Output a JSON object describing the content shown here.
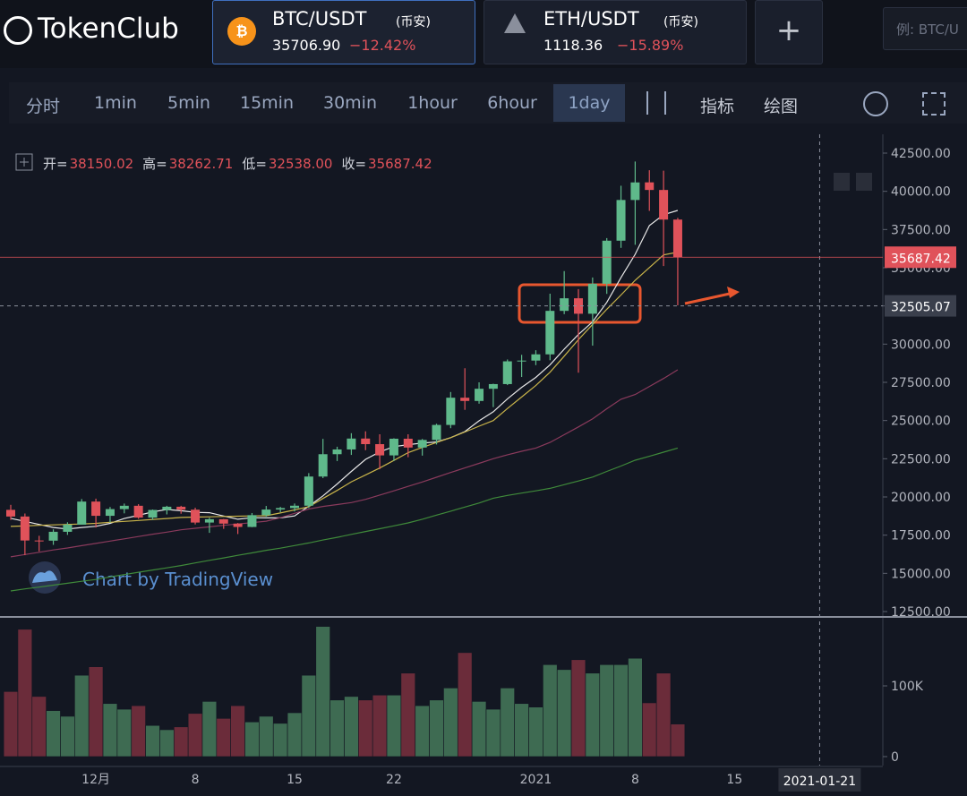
{
  "header": {
    "logo": "TokenClub",
    "tabs": [
      {
        "pair": "BTC/USDT",
        "exchange": "(币安)",
        "price": "35706.90",
        "change": "−12.42%"
      },
      {
        "pair": "ETH/USDT",
        "exchange": "(币安)",
        "price": "1118.36",
        "change": "−15.89%"
      }
    ],
    "search_placeholder": "例: BTC/U"
  },
  "toolbar": {
    "intervals": [
      "分时",
      "1min",
      "5min",
      "15min",
      "30min",
      "1hour",
      "6hour",
      "1day"
    ],
    "tools": [
      "指标",
      "绘图"
    ]
  },
  "watermark": "Chart by TradingView",
  "chart_data": {
    "type": "candlestick",
    "ohlc_legend": [
      {
        "label": "开=",
        "value": "38150.02"
      },
      {
        "label": "高=",
        "value": "38262.71"
      },
      {
        "label": "低=",
        "value": "32538.00"
      },
      {
        "label": "收=",
        "value": "35687.42"
      }
    ],
    "categories": [
      null,
      null,
      null,
      null,
      null,
      null,
      "12月",
      null,
      null,
      null,
      null,
      null,
      null,
      "8",
      null,
      null,
      null,
      null,
      null,
      null,
      "15",
      null,
      null,
      null,
      null,
      null,
      null,
      "22",
      null,
      null,
      null,
      null,
      null,
      null,
      null,
      null,
      null,
      "2021",
      null,
      null,
      null,
      null,
      null,
      null,
      "8",
      null,
      null,
      null,
      null,
      null,
      null,
      "15",
      null,
      null,
      null,
      null,
      null,
      "2021-01-21"
    ],
    "open": [
      19154,
      18719,
      17150,
      17139,
      17719,
      18185,
      19696,
      18765,
      19205,
      19422,
      18650,
      19148,
      19359,
      19166,
      18324,
      18541,
      18254,
      18036,
      18808,
      19175,
      19273,
      19426,
      21335,
      22797,
      23107,
      23821,
      23455,
      22719,
      23810,
      23232,
      23729,
      24712,
      26493,
      26281,
      27079,
      27385,
      28875,
      28923,
      29331,
      32176,
      33000,
      31989,
      33949,
      36769,
      39432,
      40586,
      40088,
      38150.02,
      null,
      null,
      null,
      null,
      null,
      null,
      null,
      null,
      null,
      null
    ],
    "high": [
      19484,
      18915,
      17457,
      17880,
      18344,
      19863,
      19888,
      19342,
      19566,
      19527,
      19177,
      19420,
      19420,
      19294,
      18639,
      18557,
      18292,
      18948,
      19411,
      19349,
      19570,
      21560,
      23800,
      23285,
      24171,
      24295,
      24102,
      23837,
      24100,
      23794,
      24789,
      26867,
      28422,
      27500,
      27410,
      28996,
      29300,
      29600,
      33300,
      34778,
      33600,
      34360,
      36939,
      40365,
      41950,
      41380,
      41350,
      38262.71,
      null,
      null,
      null,
      null,
      null,
      null,
      null,
      null,
      null,
      null
    ],
    "low": [
      18500,
      16188,
      16438,
      16865,
      17517,
      18185,
      18001,
      18330,
      18925,
      18566,
      18500,
      18857,
      18902,
      18200,
      17650,
      17911,
      17572,
      18020,
      18711,
      19000,
      19050,
      19278,
      21230,
      22350,
      22750,
      23060,
      21815,
      22353,
      22600,
      22703,
      23433,
      24500,
      25700,
      26101,
      25880,
      27320,
      27850,
      28624,
      28946,
      31962,
      28130,
      29900,
      33288,
      36300,
      36500,
      38720,
      35111,
      32538,
      null,
      null,
      null,
      null,
      null,
      null,
      null,
      null,
      null,
      null
    ],
    "close": [
      18719,
      17150,
      17139,
      17719,
      18185,
      19696,
      18765,
      19205,
      19422,
      18650,
      19148,
      19359,
      19166,
      18324,
      18541,
      18254,
      18036,
      18808,
      19175,
      19273,
      19426,
      21335,
      22797,
      23107,
      23821,
      23455,
      22719,
      23810,
      23232,
      23729,
      24712,
      26493,
      26281,
      27079,
      27385,
      28875,
      28923,
      29331,
      32178,
      33000,
      31988,
      33949,
      36769,
      39432,
      40582,
      40088,
      38150,
      35687.42,
      null,
      null,
      null,
      null,
      null,
      null,
      null,
      null,
      null,
      null
    ],
    "up_color": "#5fb98b",
    "down_color": "#e0525a",
    "series": [
      {
        "color": "#e8e8e8",
        "values": [
          18600,
          18400,
          18200,
          18000,
          17900,
          18000,
          18080,
          18270,
          18590,
          18800,
          19020,
          19180,
          19100,
          18990,
          18970,
          18750,
          18540,
          18640,
          18630,
          18630,
          18760,
          19390,
          20070,
          20850,
          21670,
          22460,
          22950,
          23290,
          23420,
          23530,
          23600,
          23880,
          24280,
          24980,
          25570,
          26420,
          27170,
          27820,
          28650,
          29670,
          30630,
          31460,
          32730,
          34350,
          35880,
          37760,
          38470,
          38750,
          null,
          null,
          null,
          null,
          null,
          null,
          null,
          null,
          null,
          null
        ]
      },
      {
        "color": "#c9b44a",
        "values": [
          18070,
          18100,
          18140,
          18170,
          18200,
          18230,
          18270,
          18340,
          18400,
          18460,
          18530,
          18590,
          18660,
          18680,
          18700,
          18720,
          18740,
          18760,
          18770,
          18950,
          19150,
          19360,
          19900,
          20430,
          20990,
          21440,
          21890,
          22390,
          22900,
          23240,
          23560,
          23880,
          24250,
          24630,
          25000,
          25790,
          26540,
          27290,
          28160,
          29210,
          30290,
          31290,
          32280,
          33210,
          34180,
          35010,
          35840,
          36020,
          null,
          null,
          null,
          null,
          null,
          null,
          null,
          null,
          null,
          null
        ]
      },
      {
        "color": "#8a3a5c",
        "values": [
          16080,
          16230,
          16380,
          16530,
          16660,
          16810,
          16960,
          17110,
          17260,
          17410,
          17560,
          17700,
          17850,
          17950,
          18040,
          18140,
          18230,
          18320,
          18410,
          18640,
          18930,
          19210,
          19380,
          19500,
          19630,
          19840,
          20120,
          20400,
          20690,
          20980,
          21290,
          21600,
          21900,
          22200,
          22500,
          22760,
          22990,
          23200,
          23570,
          24070,
          24580,
          25110,
          25770,
          26390,
          26700,
          27230,
          27750,
          28320,
          null,
          null,
          null,
          null,
          null,
          null,
          null,
          null,
          null,
          null
        ]
      },
      {
        "color": "#3f8a3a",
        "values": [
          13850,
          13980,
          14100,
          14230,
          14350,
          14480,
          14600,
          14770,
          14920,
          15070,
          15220,
          15360,
          15510,
          15680,
          15850,
          16010,
          16180,
          16340,
          16510,
          16650,
          16820,
          16990,
          17180,
          17360,
          17550,
          17740,
          17920,
          18110,
          18300,
          18540,
          18810,
          19070,
          19340,
          19600,
          19920,
          20100,
          20250,
          20400,
          20560,
          20800,
          21040,
          21300,
          21670,
          22020,
          22400,
          22660,
          22930,
          23200,
          null,
          null,
          null,
          null,
          null,
          null,
          null,
          null,
          null,
          null
        ]
      }
    ],
    "ylim": [
      12207,
      43730
    ],
    "yticks": [
      {
        "value": 12500,
        "label": "12500.00"
      },
      {
        "value": 15000,
        "label": "15000.00"
      },
      {
        "value": 17500,
        "label": "17500.00"
      },
      {
        "value": 20000,
        "label": "20000.00"
      },
      {
        "value": 22500,
        "label": "22500.00"
      },
      {
        "value": 25000,
        "label": "25000.00"
      },
      {
        "value": 27500,
        "label": "27500.00"
      },
      {
        "value": 30000,
        "label": "30000.00"
      },
      {
        "value": 32500,
        "label": "32500.00"
      },
      {
        "value": 35000,
        "label": "35000.00"
      },
      {
        "value": 37500,
        "label": "37500.00"
      },
      {
        "value": 40000,
        "label": "40000.00"
      },
      {
        "value": 42500,
        "label": "42500.00"
      }
    ],
    "last_price": 35687.42,
    "crosshair_price": 32505.07,
    "volume": {
      "values": [
        92000,
        180000,
        85000,
        65000,
        57000,
        115000,
        127000,
        75000,
        67000,
        72000,
        44000,
        38000,
        42000,
        61000,
        78000,
        54000,
        72000,
        49000,
        57000,
        47000,
        62000,
        115000,
        184000,
        80000,
        85000,
        80000,
        87000,
        87000,
        118000,
        72000,
        80000,
        97000,
        147000,
        78000,
        67000,
        97000,
        75000,
        70000,
        130000,
        123000,
        137000,
        118000,
        130000,
        130000,
        139000,
        76000,
        118000,
        46000,
        null,
        null,
        null,
        null,
        null,
        null,
        null,
        null,
        null,
        null
      ],
      "ylim": [
        -12660,
        196200
      ],
      "yticks": [
        0,
        {
          "value": 100000,
          "label": "100K"
        }
      ]
    }
  }
}
